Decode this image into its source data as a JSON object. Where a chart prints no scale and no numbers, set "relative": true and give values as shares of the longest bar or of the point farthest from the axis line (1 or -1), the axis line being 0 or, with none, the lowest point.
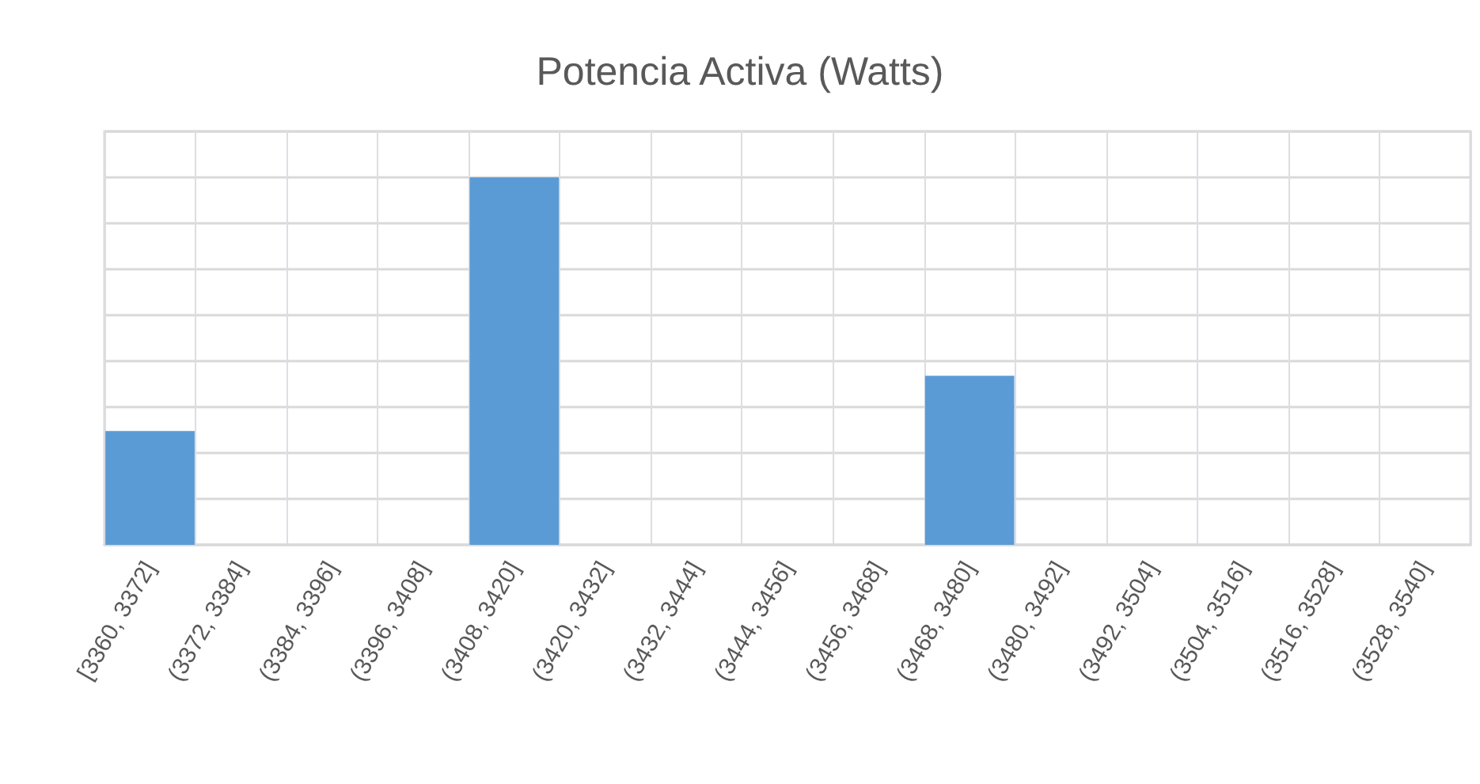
{
  "chart_data": {
    "type": "bar",
    "title": "Potencia Activa (Watts)",
    "categories": [
      "[3360, 3372]",
      "(3372, 3384]",
      "(3384, 3396]",
      "(3396, 3408]",
      "(3408, 3420]",
      "(3420, 3432]",
      "(3432, 3444]",
      "(3444, 3456]",
      "(3456, 3468]",
      "(3468, 3480]",
      "(3480, 3492]",
      "(3492, 3504]",
      "(3504, 3516]",
      "(3516, 3528]",
      "(3528, 3540]"
    ],
    "values": [
      0.31,
      0,
      0,
      0,
      1,
      0,
      0,
      0,
      0,
      0.46,
      0,
      0,
      0,
      0,
      0
    ],
    "color": "#5b9bd5",
    "relative": true,
    "grid": true
  }
}
